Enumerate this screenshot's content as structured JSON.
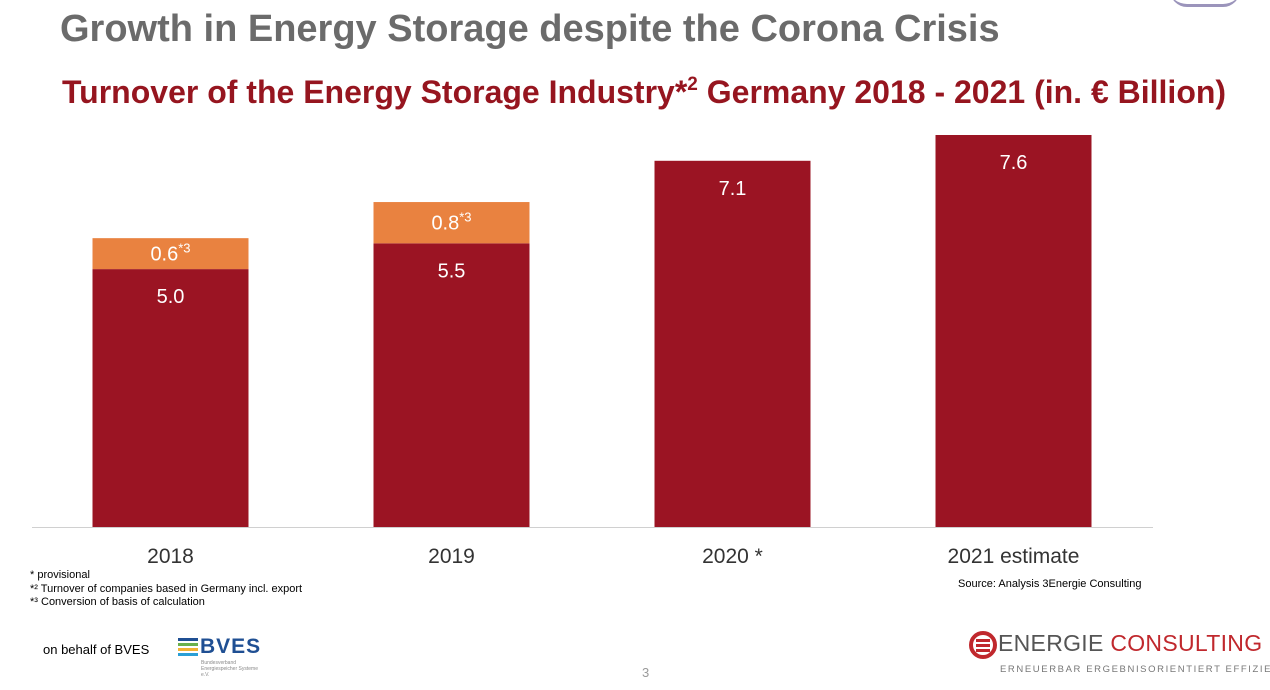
{
  "slide_title": "Growth in Energy Storage despite the Corona Crisis",
  "chart_title_main": "Turnover of the Energy Storage Industry*",
  "chart_title_sup": "2",
  "chart_title_rest": " Germany 2018 - 2021 (in. € Billion)",
  "colors": {
    "title_gray": "#6b6b6b",
    "dark_red": "#9b1423",
    "orange": "#e98240",
    "axis": "#d0d0d0"
  },
  "chart_data": {
    "type": "bar",
    "stacked": true,
    "categories": [
      "2018",
      "2019",
      "2020 *",
      "2021 estimate"
    ],
    "series": [
      {
        "color": "#9b1423",
        "values": [
          5.0,
          5.5,
          7.1,
          7.6
        ],
        "labels": [
          "5.0",
          "5.5",
          "7.1",
          "7.6"
        ]
      },
      {
        "color": "#e98240",
        "values": [
          0.6,
          0.8,
          null,
          null
        ],
        "labels": [
          "0.6",
          "0.8",
          "",
          ""
        ],
        "label_sup": "*3"
      }
    ],
    "ylim": [
      0,
      7.6
    ],
    "grid": false,
    "legend": false
  },
  "footnotes": [
    "* provisional",
    "*² Turnover of companies based in Germany incl. export",
    "*³ Conversion of basis of calculation"
  ],
  "source": "Source: Analysis 3Energie Consulting",
  "behalf": "on behalf of BVES",
  "bves": {
    "name": "BVES",
    "sub": "Bundesverband Energiespeicher Systeme e.V.",
    "line_colors": [
      "#1f4f93",
      "#6ab04c",
      "#f2b233",
      "#2a9fd6"
    ]
  },
  "page_number": "3",
  "energie_logo": {
    "word_a": "ENERGIE",
    "word_b": " CONSULTING",
    "tagline": "ERNEUERBAR ERGEBNISORIENTIERT EFFIZIENT"
  }
}
